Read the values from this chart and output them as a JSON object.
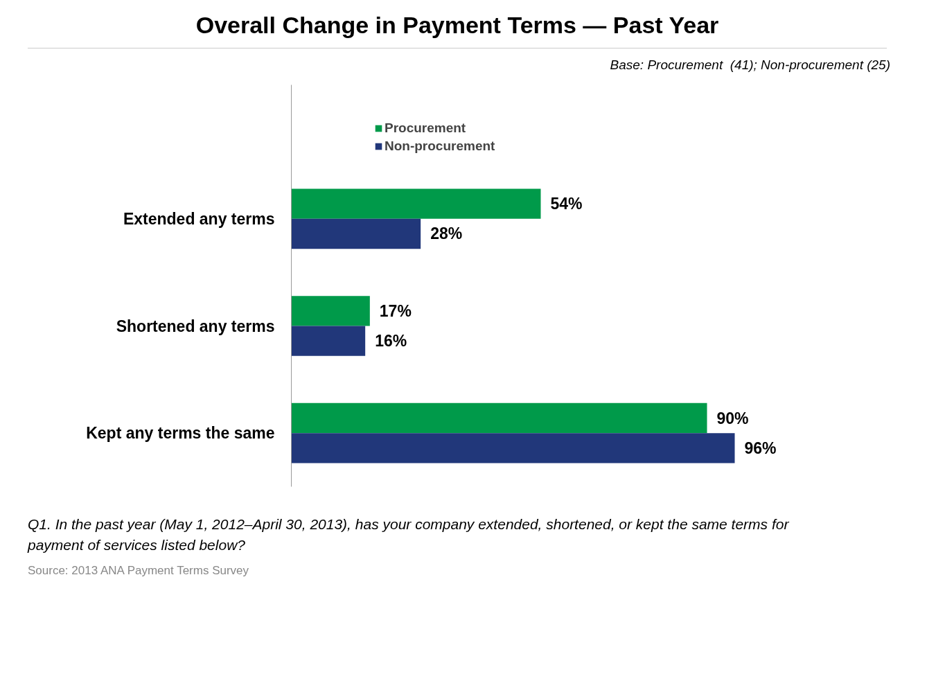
{
  "chart_data": {
    "type": "bar",
    "orientation": "horizontal",
    "title": "Overall Change in Payment Terms — Past Year",
    "subtitle": "Base: Procurement  (41); Non-procurement (25)",
    "categories": [
      "Extended any terms",
      "Shortened any terms",
      "Kept any terms the same"
    ],
    "series": [
      {
        "name": "Procurement",
        "color": "#009a4a",
        "values": [
          54,
          17,
          90
        ],
        "value_labels": [
          "54%",
          "17%",
          "90%"
        ]
      },
      {
        "name": "Non-procurement",
        "color": "#21377a",
        "values": [
          28,
          16,
          96
        ],
        "value_labels": [
          "28%",
          "16%",
          "96%"
        ]
      }
    ],
    "legend": "top left",
    "grid": false,
    "tick_labels": "y",
    "annotations": [
      "Q1. In the past year (May 1, 2012–April 30, 2013), has your company extended, shortened, or kept the same terms for payment of services listed below?",
      "Source: 2013 ANA Payment Terms Survey"
    ]
  }
}
